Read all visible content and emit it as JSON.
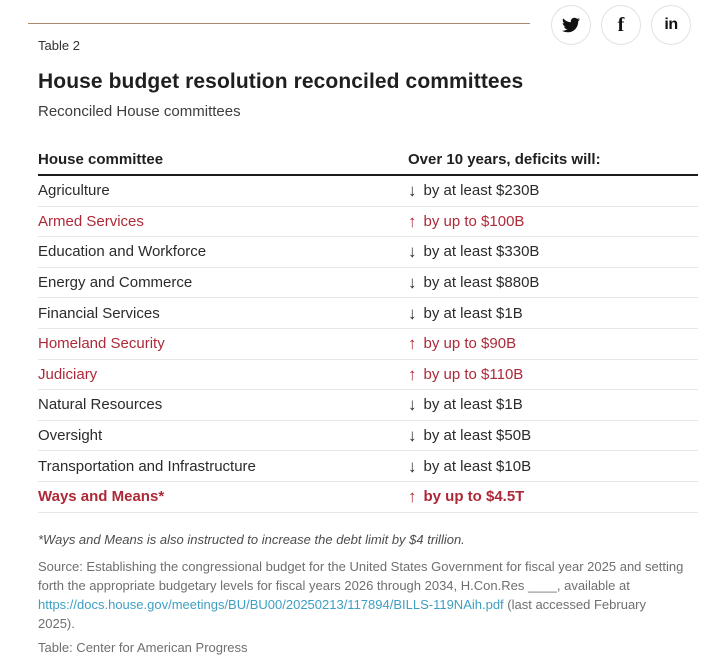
{
  "table_label": "Table 2",
  "share": {
    "twitter_label": "twitter-share",
    "facebook_glyph": "f",
    "linkedin_glyph": "in"
  },
  "icons": {
    "arrow_up": "↑",
    "arrow_down": "↓"
  },
  "colors": {
    "accent_red": "#ae2938",
    "link_teal": "#3e9fc2",
    "rule_tan": "#a98a68",
    "text_dark": "#262626",
    "text_gray": "#6f6f6f"
  },
  "chart_data": {
    "type": "table",
    "title": "House budget resolution reconciled committees",
    "subtitle": "Reconciled House committees",
    "columns": [
      "House committee",
      "Over 10 years, deficits will:"
    ],
    "rows": [
      {
        "committee": "Agriculture",
        "direction": "down",
        "change": "by at least $230B",
        "emphasis": false,
        "bold": false
      },
      {
        "committee": "Armed Services",
        "direction": "up",
        "change": "by up to $100B",
        "emphasis": true,
        "bold": false
      },
      {
        "committee": "Education and Workforce",
        "direction": "down",
        "change": "by at least $330B",
        "emphasis": false,
        "bold": false
      },
      {
        "committee": "Energy and Commerce",
        "direction": "down",
        "change": "by at least $880B",
        "emphasis": false,
        "bold": false
      },
      {
        "committee": "Financial Services",
        "direction": "down",
        "change": "by at least $1B",
        "emphasis": false,
        "bold": false
      },
      {
        "committee": "Homeland Security",
        "direction": "up",
        "change": "by up to $90B",
        "emphasis": true,
        "bold": false
      },
      {
        "committee": "Judiciary",
        "direction": "up",
        "change": "by up to $110B",
        "emphasis": true,
        "bold": false
      },
      {
        "committee": "Natural Resources",
        "direction": "down",
        "change": "by at least $1B",
        "emphasis": false,
        "bold": false
      },
      {
        "committee": "Oversight",
        "direction": "down",
        "change": "by at least $50B",
        "emphasis": false,
        "bold": false
      },
      {
        "committee": "Transportation and Infrastructure",
        "direction": "down",
        "change": "by at least $10B",
        "emphasis": false,
        "bold": false
      },
      {
        "committee": "Ways and Means*",
        "direction": "up",
        "change": "by up to $4.5T",
        "emphasis": true,
        "bold": true
      }
    ]
  },
  "footer": {
    "footnote": "*Ways and Means is also instructed to increase the debt limit by $4 trillion.",
    "source_prefix": "Source: Establishing the congressional budget for the United States Government for fiscal year 2025 and setting forth the appropriate budgetary levels for fiscal years 2026 through 2034, H.Con.Res ____, available at ",
    "source_link": "https://docs.house.gov/meetings/BU/BU00/20250213/117894/BILLS-119NAih.pdf",
    "source_suffix": " (last accessed February 2025).",
    "credit": "Table: Center for American Progress"
  }
}
